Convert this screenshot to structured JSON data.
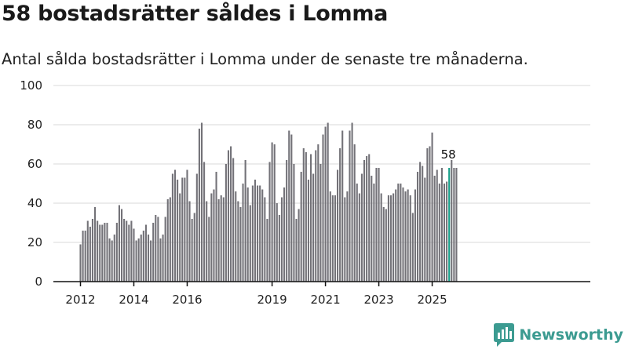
{
  "header": {
    "title": "58 bostadsrätter såldes i Lomma",
    "subtitle": "Antal sålda bostadsrätter i Lomma under de senaste tre månaderna."
  },
  "brand": {
    "name": "Newsworthy",
    "color": "#3c9b91"
  },
  "colors": {
    "bar": "#737278",
    "highlight": "#17a08a"
  },
  "chart_data": {
    "type": "bar",
    "title": "58 bostadsrätter såldes i Lomma",
    "subtitle": "Antal sålda bostadsrätter i Lomma under de senaste tre månaderna.",
    "xlabel": "",
    "ylabel": "",
    "ylim": [
      0,
      100
    ],
    "yticks": [
      0,
      20,
      40,
      60,
      80,
      100
    ],
    "grid": true,
    "xtick_labels": [
      {
        "label": "2012",
        "index": 0
      },
      {
        "label": "2014",
        "index": 22
      },
      {
        "label": "2016",
        "index": 44
      },
      {
        "label": "2019",
        "index": 79
      },
      {
        "label": "2021",
        "index": 101
      },
      {
        "label": "2023",
        "index": 123
      },
      {
        "label": "2025",
        "index": 145
      }
    ],
    "highlight_index": 152,
    "highlight_label": "58",
    "values": [
      19,
      26,
      26,
      31,
      28,
      32,
      38,
      31,
      29,
      29,
      30,
      30,
      22,
      21,
      24,
      30,
      39,
      37,
      32,
      31,
      29,
      31,
      27,
      21,
      22,
      24,
      26,
      29,
      24,
      21,
      30,
      34,
      33,
      22,
      24,
      33,
      42,
      43,
      55,
      57,
      52,
      45,
      53,
      53,
      57,
      41,
      32,
      35,
      55,
      78,
      81,
      61,
      41,
      33,
      45,
      47,
      56,
      42,
      44,
      43,
      60,
      67,
      69,
      63,
      46,
      41,
      38,
      50,
      62,
      48,
      39,
      49,
      52,
      49,
      49,
      47,
      43,
      32,
      61,
      71,
      70,
      40,
      34,
      43,
      48,
      62,
      77,
      75,
      60,
      32,
      37,
      56,
      68,
      66,
      52,
      65,
      55,
      67,
      70,
      60,
      75,
      79,
      81,
      46,
      44,
      44,
      57,
      68,
      77,
      43,
      46,
      77,
      81,
      70,
      50,
      45,
      55,
      62,
      64,
      65,
      54,
      50,
      58,
      58,
      45,
      38,
      37,
      44,
      44,
      45,
      47,
      50,
      50,
      48,
      46,
      47,
      44,
      35,
      47,
      56,
      61,
      59,
      53,
      68,
      69,
      76,
      54,
      57,
      50,
      58,
      50,
      51,
      58,
      62,
      58,
      58
    ]
  }
}
